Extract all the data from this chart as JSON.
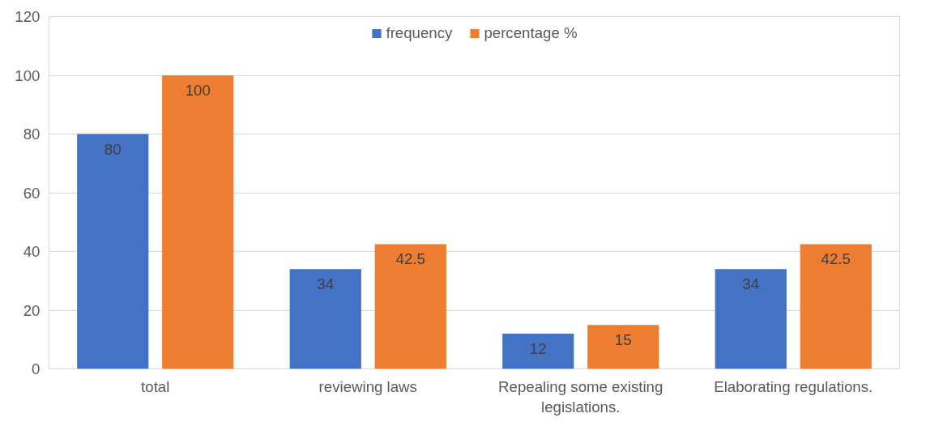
{
  "chart_data": {
    "type": "bar",
    "categories": [
      "total",
      "reviewing laws",
      "Repealing some existing legislations.",
      "Elaborating regulations."
    ],
    "series": [
      {
        "name": "frequency",
        "color": "#4472c4",
        "values": [
          80,
          34,
          12,
          34
        ]
      },
      {
        "name": "percentage %",
        "color": "#ed7d31",
        "values": [
          100,
          42.5,
          15,
          42.5
        ]
      }
    ],
    "ylim": [
      0,
      120
    ],
    "yticks": [
      0,
      20,
      40,
      60,
      80,
      100,
      120
    ],
    "grid": "y",
    "legend": "top",
    "data_labels": true
  }
}
